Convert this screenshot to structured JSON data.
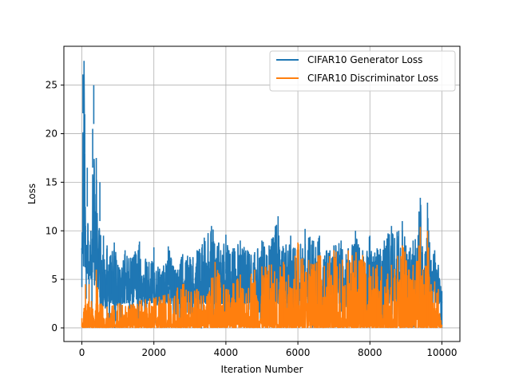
{
  "chart_data": {
    "type": "line",
    "title": "",
    "xlabel": "Iteration Number",
    "ylabel": "Loss",
    "xlim": [
      -500,
      10500
    ],
    "ylim": [
      -1.4,
      29.0
    ],
    "xticks": [
      0,
      2000,
      4000,
      6000,
      8000,
      10000
    ],
    "yticks": [
      0,
      5,
      10,
      15,
      20,
      25
    ],
    "xtick_labels": [
      "0",
      "2000",
      "4000",
      "6000",
      "8000",
      "10000"
    ],
    "ytick_labels": [
      "0",
      "5",
      "10",
      "15",
      "20",
      "25"
    ],
    "grid": true,
    "legend_position": "upper-right",
    "series": [
      {
        "name": "CIFAR10 Generator Loss",
        "color": "#1f77b4",
        "x": [
          0,
          30,
          60,
          80,
          100,
          120,
          150,
          180,
          200,
          250,
          280,
          300,
          330,
          360,
          400,
          450,
          500,
          550,
          600,
          650,
          700,
          800,
          900,
          1000,
          1200,
          1400,
          1600,
          1800,
          2000,
          2200,
          2400,
          2600,
          2800,
          3000,
          3200,
          3400,
          3600,
          3800,
          4000,
          4200,
          4400,
          4600,
          4800,
          5000,
          5200,
          5450,
          5600,
          5800,
          6000,
          6200,
          6400,
          6600,
          6800,
          7000,
          7200,
          7400,
          7600,
          7800,
          8000,
          8200,
          8400,
          8600,
          8800,
          8900,
          9000,
          9200,
          9400,
          9500,
          9600,
          9700,
          9800,
          9900,
          10000
        ],
        "y": [
          8.2,
          26.1,
          27.5,
          22.0,
          10.5,
          7.0,
          16.5,
          9.0,
          6.5,
          10.0,
          6.0,
          20.5,
          25.0,
          12.0,
          17.5,
          8.0,
          15.0,
          7.0,
          9.5,
          6.0,
          8.5,
          7.5,
          8.8,
          6.5,
          8.0,
          7.2,
          8.9,
          6.8,
          8.3,
          5.5,
          8.4,
          6.0,
          7.6,
          7.3,
          8.0,
          9.3,
          10.5,
          8.8,
          9.6,
          8.2,
          9.0,
          8.0,
          7.8,
          9.0,
          8.5,
          11.5,
          8.2,
          9.5,
          8.3,
          10.2,
          9.0,
          9.5,
          8.0,
          8.5,
          9.0,
          8.2,
          10.0,
          8.0,
          9.5,
          8.2,
          9.0,
          10.5,
          10.0,
          11.0,
          8.5,
          9.0,
          13.4,
          6.0,
          12.9,
          7.0,
          8.0,
          6.5,
          3.8
        ]
      },
      {
        "name": "CIFAR10 Discriminator Loss",
        "color": "#ff7f0e",
        "x": [
          0,
          60,
          100,
          150,
          200,
          300,
          400,
          500,
          700,
          1000,
          1300,
          1600,
          2000,
          2400,
          2800,
          3200,
          3500,
          3700,
          4000,
          4400,
          4800,
          5200,
          5600,
          6000,
          6300,
          6600,
          7000,
          7400,
          7800,
          8200,
          8600,
          8900,
          9200,
          9400,
          9500,
          9600,
          9700,
          9800,
          9900,
          10000
        ],
        "y": [
          1.0,
          2.0,
          4.5,
          2.5,
          4.5,
          2.0,
          6.0,
          2.5,
          2.2,
          2.5,
          2.3,
          2.8,
          3.1,
          3.5,
          4.5,
          4.0,
          3.5,
          6.8,
          4.0,
          5.5,
          6.0,
          6.5,
          6.8,
          8.8,
          7.0,
          7.5,
          8.0,
          8.0,
          7.5,
          6.5,
          6.5,
          8.5,
          6.5,
          10.4,
          4.5,
          10.0,
          4.5,
          4.8,
          4.0,
          0.3
        ]
      }
    ]
  }
}
